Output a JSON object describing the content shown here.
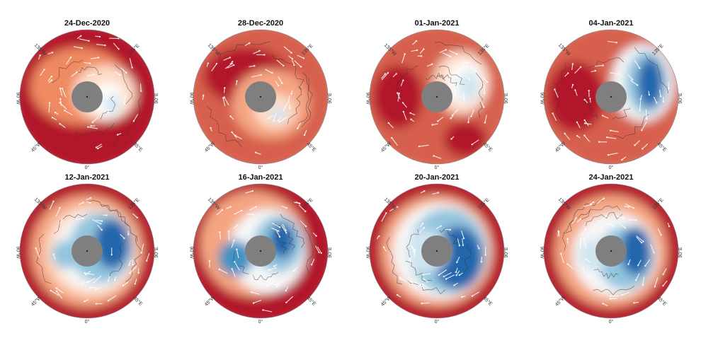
{
  "panels": [
    {
      "title": "24-Dec-2020"
    },
    {
      "title": "28-Dec-2020"
    },
    {
      "title": "01-Jan-2021"
    },
    {
      "title": "04-Jan-2021"
    },
    {
      "title": "12-Jan-2021"
    },
    {
      "title": "16-Jan-2021"
    },
    {
      "title": "20-Jan-2021"
    },
    {
      "title": "24-Jan-2021"
    }
  ],
  "longitude_labels": {
    "w135": "135°W",
    "e135": "135°E",
    "w90": "90°W",
    "e90": "90°E",
    "w45": "45°W",
    "e45": "45°E",
    "zero": "0°"
  }
}
